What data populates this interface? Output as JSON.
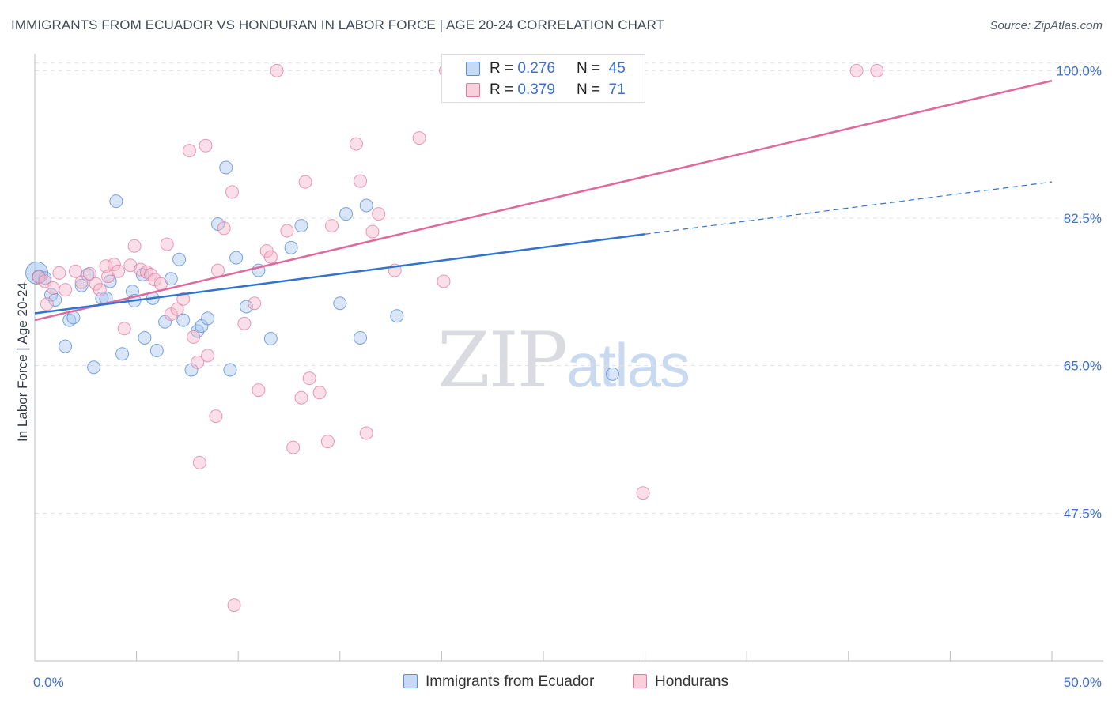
{
  "title": "IMMIGRANTS FROM ECUADOR VS HONDURAN IN LABOR FORCE | AGE 20-24 CORRELATION CHART",
  "source": "Source: ZipAtlas.com",
  "watermark": {
    "zip": "ZIP",
    "atlas": "atlas"
  },
  "legend_top": [
    {
      "r_label": "R =",
      "r_value": "0.276",
      "n_label": "N =",
      "n_value": "45",
      "color": "#a8c8f0"
    },
    {
      "r_label": "R =",
      "r_value": "0.379",
      "n_label": "N =",
      "n_value": "71",
      "color": "#f5b8cb"
    }
  ],
  "legend_bottom": [
    {
      "label": "Immigrants from Ecuador",
      "color": "#a8c8f0"
    },
    {
      "label": "Hondurans",
      "color": "#f5b8cb"
    }
  ],
  "colors": {
    "ecuador_fill": "#a8c8f0",
    "ecuador_stroke": "#5b8fd4",
    "ecuador_line": "#2f74d0",
    "honduran_fill": "#f5b8cb",
    "honduran_stroke": "#e07aa0",
    "honduran_line": "#e0689a",
    "tick_text": "#3b6fd1",
    "grid": "#dfe2e6"
  },
  "chart_data": {
    "type": "scatter",
    "title": "IMMIGRANTS FROM ECUADOR VS HONDURAN IN LABOR FORCE | AGE 20-24 CORRELATION CHART",
    "xlabel": "",
    "ylabel": "In Labor Force | Age 20-24",
    "xlim": [
      0,
      50
    ],
    "ylim": [
      30,
      102
    ],
    "x_tick_labels": [
      "0.0%",
      "50.0%"
    ],
    "y_ticks": [
      47.5,
      65.0,
      82.5,
      100.0
    ],
    "y_tick_labels": [
      "47.5%",
      "65.0%",
      "82.5%",
      "100.0%"
    ],
    "grid": "horizontal dashed",
    "legend_position": "top-center",
    "series": [
      {
        "name": "Immigrants from Ecuador",
        "r": 0.276,
        "n": 45,
        "points": [
          [
            0.1,
            76.0
          ],
          [
            0.2,
            75.6
          ],
          [
            0.5,
            75.4
          ],
          [
            0.8,
            73.4
          ],
          [
            1.0,
            72.8
          ],
          [
            1.5,
            67.3
          ],
          [
            1.7,
            70.4
          ],
          [
            1.9,
            70.7
          ],
          [
            2.3,
            74.5
          ],
          [
            2.6,
            75.8
          ],
          [
            2.9,
            64.8
          ],
          [
            3.3,
            73.0
          ],
          [
            3.5,
            73.0
          ],
          [
            3.7,
            75.0
          ],
          [
            4.0,
            84.5
          ],
          [
            4.3,
            66.4
          ],
          [
            4.8,
            73.8
          ],
          [
            4.9,
            72.7
          ],
          [
            5.3,
            75.8
          ],
          [
            5.4,
            68.3
          ],
          [
            5.8,
            73.0
          ],
          [
            6.0,
            66.8
          ],
          [
            6.4,
            70.2
          ],
          [
            6.7,
            75.3
          ],
          [
            7.1,
            77.6
          ],
          [
            7.3,
            70.4
          ],
          [
            7.7,
            64.5
          ],
          [
            8.0,
            69.1
          ],
          [
            8.2,
            69.7
          ],
          [
            8.5,
            70.6
          ],
          [
            9.0,
            81.8
          ],
          [
            9.4,
            88.5
          ],
          [
            9.6,
            64.5
          ],
          [
            9.9,
            77.8
          ],
          [
            10.4,
            72.0
          ],
          [
            11.0,
            76.3
          ],
          [
            11.6,
            68.2
          ],
          [
            12.6,
            79.0
          ],
          [
            13.1,
            81.6
          ],
          [
            15.0,
            72.4
          ],
          [
            15.3,
            83.0
          ],
          [
            16.0,
            68.3
          ],
          [
            16.3,
            84.0
          ],
          [
            17.8,
            70.9
          ],
          [
            28.4,
            64.0
          ]
        ],
        "trend": {
          "x": [
            0,
            30
          ],
          "y": [
            71.2,
            80.6
          ]
        },
        "trend_extension": {
          "x": [
            30,
            50
          ],
          "y": [
            80.6,
            86.8
          ]
        }
      },
      {
        "name": "Hondurans",
        "r": 0.379,
        "n": 71,
        "points": [
          [
            0.2,
            75.5
          ],
          [
            0.5,
            75.0
          ],
          [
            0.6,
            72.3
          ],
          [
            0.9,
            74.2
          ],
          [
            1.2,
            76.0
          ],
          [
            1.5,
            74.0
          ],
          [
            2.0,
            76.2
          ],
          [
            2.3,
            74.9
          ],
          [
            2.7,
            75.9
          ],
          [
            3.0,
            74.7
          ],
          [
            3.2,
            74.0
          ],
          [
            3.5,
            76.8
          ],
          [
            3.6,
            75.6
          ],
          [
            3.9,
            77.0
          ],
          [
            4.1,
            76.2
          ],
          [
            4.4,
            69.4
          ],
          [
            4.7,
            76.9
          ],
          [
            4.9,
            79.2
          ],
          [
            5.2,
            76.4
          ],
          [
            5.5,
            76.1
          ],
          [
            5.7,
            75.8
          ],
          [
            5.9,
            75.2
          ],
          [
            6.2,
            74.7
          ],
          [
            6.5,
            79.4
          ],
          [
            6.7,
            71.1
          ],
          [
            7.0,
            71.7
          ],
          [
            7.3,
            72.9
          ],
          [
            7.6,
            90.5
          ],
          [
            7.8,
            68.4
          ],
          [
            8.0,
            65.4
          ],
          [
            8.4,
            91.1
          ],
          [
            8.5,
            66.2
          ],
          [
            8.9,
            59.0
          ],
          [
            9.0,
            76.3
          ],
          [
            9.3,
            81.3
          ],
          [
            9.7,
            85.6
          ],
          [
            9.8,
            36.6
          ],
          [
            10.3,
            70.0
          ],
          [
            10.8,
            72.4
          ],
          [
            11.0,
            62.1
          ],
          [
            11.4,
            78.6
          ],
          [
            11.6,
            77.9
          ],
          [
            12.4,
            81.0
          ],
          [
            12.7,
            55.3
          ],
          [
            13.1,
            61.2
          ],
          [
            13.3,
            86.8
          ],
          [
            13.5,
            63.5
          ],
          [
            14.0,
            61.8
          ],
          [
            14.4,
            56.0
          ],
          [
            14.6,
            81.6
          ],
          [
            15.8,
            91.3
          ],
          [
            16.0,
            86.9
          ],
          [
            16.3,
            57.0
          ],
          [
            16.6,
            80.9
          ],
          [
            16.9,
            83.0
          ],
          [
            17.7,
            76.3
          ],
          [
            18.9,
            92.0
          ],
          [
            20.1,
            75.0
          ],
          [
            11.9,
            100.0
          ],
          [
            20.2,
            100.0
          ],
          [
            24.1,
            100.0
          ],
          [
            24.6,
            100.0
          ],
          [
            26.0,
            100.0
          ],
          [
            26.7,
            100.0
          ],
          [
            27.8,
            100.0
          ],
          [
            29.9,
            49.9
          ],
          [
            40.4,
            100.0
          ],
          [
            41.4,
            100.0
          ],
          [
            28.9,
            100.0
          ],
          [
            8.1,
            53.5
          ],
          [
            21.3,
            100.0
          ]
        ],
        "trend": {
          "x": [
            0,
            50
          ],
          "y": [
            70.4,
            98.8
          ]
        }
      }
    ]
  }
}
